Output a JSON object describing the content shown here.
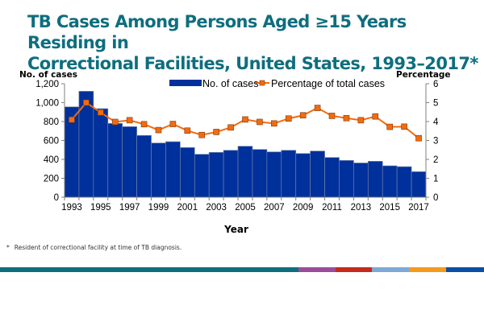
{
  "title_lines": [
    "TB Cases Among Persons Aged ≥15 Years Residing in",
    "Correctional Facilities, United States, 1993–2017*"
  ],
  "footnote": {
    "marker": "*",
    "text": "Resident of correctional facility at time of TB diagnosis."
  },
  "colors": {
    "title": "#0E6E7E",
    "bars": "#00309B",
    "bar_edge": "#6C7FA8",
    "line": "#F26B10",
    "marker_fill": "#F26B10",
    "marker_edge": "#7A3A10",
    "bottom_bar": [
      "#0E6E7E",
      "#9B4C9B",
      "#C62A1C",
      "#7EA9D6",
      "#F59A1B",
      "#0A4FA6"
    ]
  },
  "chart_data": {
    "type": "bar+line",
    "title": "TB Cases Among Persons Aged ≥15 Years Residing in Correctional Facilities, United States, 1993–2017*",
    "xlabel": "Year",
    "ylabel_left": "No. of cases",
    "ylabel_right": "Percentage",
    "categories": [
      1993,
      1994,
      1995,
      1996,
      1997,
      1998,
      1999,
      2000,
      2001,
      2002,
      2003,
      2004,
      2005,
      2006,
      2007,
      2008,
      2009,
      2010,
      2011,
      2012,
      2013,
      2014,
      2015,
      2016,
      2017
    ],
    "x_tick_labels": [
      "1993",
      "",
      "1995",
      "",
      "1997",
      "",
      "1999",
      "",
      "2001",
      "",
      "2003",
      "",
      "2005",
      "",
      "2007",
      "",
      "2009",
      "",
      "2011",
      "",
      "2013",
      "",
      "2015",
      "",
      "2017"
    ],
    "left_axis": {
      "ylim": [
        0,
        1200
      ],
      "ticks": [
        0,
        200,
        400,
        600,
        800,
        1000,
        1200
      ],
      "tick_labels": [
        "0",
        "200",
        "400",
        "600",
        "800",
        "1,000",
        "1,200"
      ]
    },
    "right_axis": {
      "ylim": [
        0,
        6
      ],
      "ticks": [
        0,
        1,
        2,
        3,
        4,
        5,
        6
      ],
      "tick_labels": [
        "0",
        "1",
        "2",
        "3",
        "4",
        "5",
        "6"
      ]
    },
    "series": [
      {
        "name": "No. of cases",
        "type": "bar",
        "axis": "left",
        "values": [
          955,
          1120,
          936,
          780,
          746,
          653,
          573,
          587,
          525,
          454,
          474,
          496,
          539,
          505,
          479,
          496,
          462,
          488,
          420,
          389,
          362,
          380,
          332,
          323,
          270
        ]
      },
      {
        "name": "Percentage of total cases",
        "type": "line",
        "axis": "right",
        "values": [
          4.1,
          5.0,
          4.48,
          3.98,
          4.07,
          3.86,
          3.55,
          3.87,
          3.52,
          3.29,
          3.45,
          3.69,
          4.11,
          3.98,
          3.9,
          4.16,
          4.33,
          4.72,
          4.3,
          4.18,
          4.07,
          4.27,
          3.72,
          3.73,
          3.12
        ]
      }
    ],
    "legend": {
      "placement": "top-center",
      "entries": [
        "No. of cases",
        "Percentage of total cases"
      ]
    },
    "grid": false
  }
}
